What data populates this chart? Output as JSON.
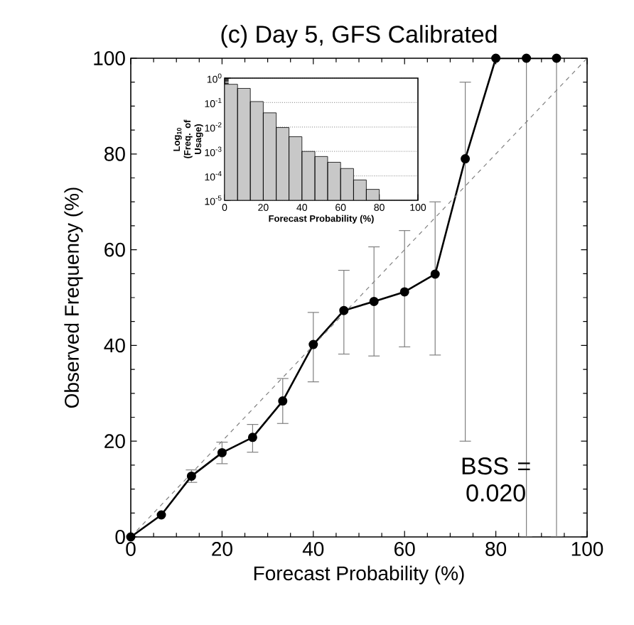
{
  "chart_data": [
    {
      "type": "line",
      "title": "(c) Day 5, GFS Calibrated",
      "xlabel": "Forecast Probability (%)",
      "ylabel": "Observed Frequency (%)",
      "xlim": [
        0,
        100
      ],
      "ylim": [
        0,
        100
      ],
      "xticks": [
        0,
        20,
        40,
        60,
        80,
        100
      ],
      "yticks": [
        0,
        20,
        40,
        60,
        80,
        100
      ],
      "marker": "circle",
      "series": [
        {
          "color": "#000000",
          "x": [
            0,
            6.7,
            13.3,
            20,
            26.7,
            33.3,
            40,
            46.7,
            53.3,
            60,
            66.7,
            73.3,
            80,
            86.7,
            93.3
          ],
          "values": [
            0,
            4.6,
            12.7,
            17.6,
            20.8,
            28.4,
            40.2,
            47.3,
            49.2,
            51.2,
            54.9,
            79,
            100,
            100,
            100
          ],
          "errors": [
            null,
            null,
            [
              11.4,
              14.0
            ],
            [
              15.3,
              19.8
            ],
            [
              17.7,
              23.5
            ],
            [
              23.7,
              33.1
            ],
            [
              32.4,
              46.9
            ],
            [
              38.2,
              55.7
            ],
            [
              37.8,
              60.6
            ],
            [
              39.7,
              64.0
            ],
            [
              38.0,
              70.0
            ],
            [
              20.0,
              95.0
            ],
            null,
            [
              0,
              100
            ],
            [
              0,
              100
            ]
          ]
        },
        {
          "type": "line",
          "color": "#808080",
          "marker": "none",
          "line_style": "dashed",
          "x": [
            0,
            100
          ],
          "values": [
            0,
            100
          ]
        }
      ],
      "annotations": [
        "BSS = 0.020"
      ]
    },
    {
      "type": "histogram",
      "xlabel": "Forecast Probability (%)",
      "ylabel": "Log$_{10}$ (Freq. of Usage)",
      "log": "y",
      "grid": "y",
      "color": "#c8c8c8",
      "bins": [
        0,
        6.7,
        13.3,
        20,
        26.7,
        33.3,
        40,
        46.7,
        53.3,
        60,
        66.7,
        73.3,
        80
      ],
      "values": [
        0.56,
        0.38,
        0.11,
        0.038,
        0.0095,
        0.004,
        0.001,
        0.00062,
        0.00036,
        0.0002,
        6.8e-05,
        2.8e-05
      ],
      "xlim": [
        0,
        100
      ],
      "ylim": [
        1e-05,
        1
      ],
      "xticks": [
        0,
        20,
        40,
        60,
        80,
        100
      ],
      "yticks": [
        {
          "value": 1e-05,
          "label": "10$^{-5}$"
        },
        {
          "value": 0.0001,
          "label": "10$^{-4}$"
        },
        {
          "value": 0.001,
          "label": "10$^{-3}$"
        },
        {
          "value": 0.01,
          "label": "10$^{-2}$"
        },
        {
          "value": 0.1,
          "label": "10$^{-1}$"
        },
        {
          "value": 1,
          "label": "10$^{0}$"
        }
      ]
    }
  ]
}
